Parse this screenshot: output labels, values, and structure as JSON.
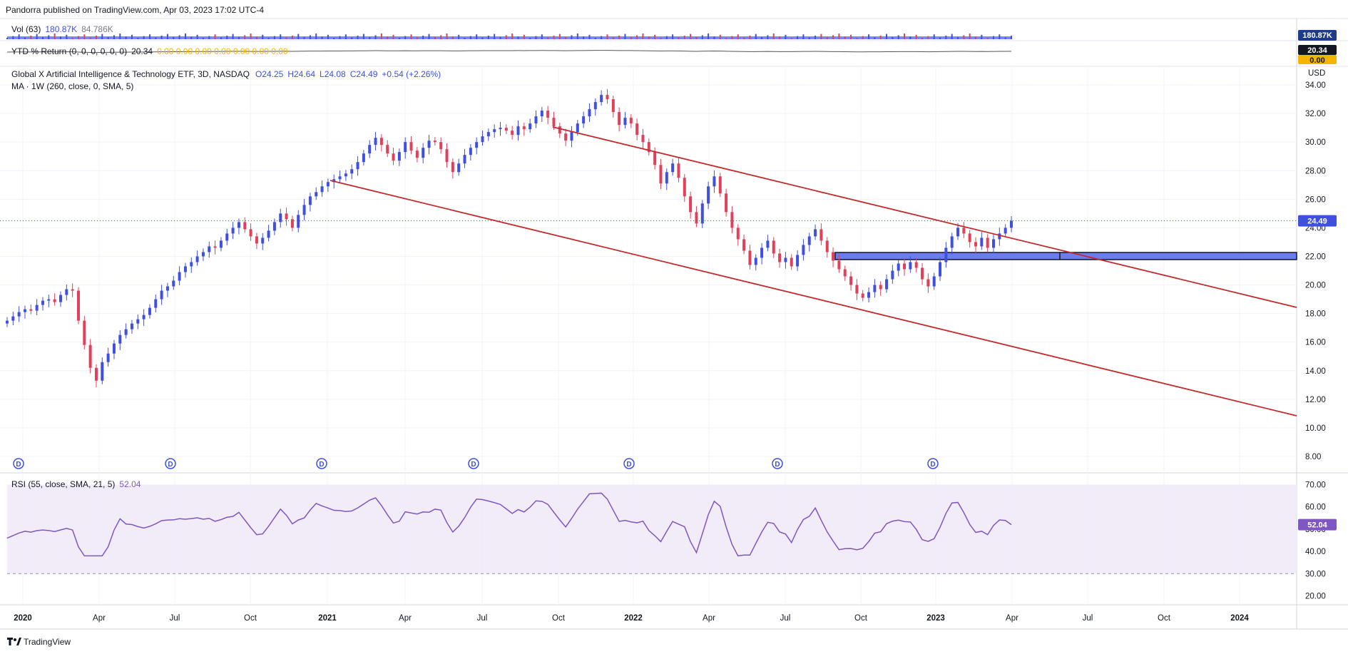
{
  "header": {
    "published": "Pandorra published on TradingView.com, Apr 03, 2023 17:02 UTC-4"
  },
  "volume": {
    "label": "Vol (63)",
    "value1": "180.87K",
    "value2": "84.786K",
    "badge": "180.87K",
    "color": "#5b6be0"
  },
  "ytd": {
    "label": "YTD % Return (0, 0, 0, 0, 0, 0)",
    "value": "20.34",
    "zeros": "0.00  0.00  0.00  0.00  0.00  0.00  0.00",
    "badge1": "20.34",
    "badge2": "0.00"
  },
  "legend": {
    "title": "Global X Artificial Intelligence & Technology ETF, 3D, NASDAQ",
    "o": "O24.25",
    "h": "H24.64",
    "l": "L24.08",
    "c": "C24.49",
    "chg": "+0.54 (+2.26%)",
    "ma": "MA · 1W (260, close, 0, SMA, 5)"
  },
  "rsi": {
    "label": "RSI (55, close, SMA, 21, 5)",
    "value": "52.04",
    "badge": "52.04"
  },
  "price_badge": "24.49",
  "currency": "USD",
  "dividend_marker": "D",
  "brand": "TradingView",
  "colors": {
    "up": "#3f4fe0",
    "down": "#e0405a",
    "trend": "#c42a2a",
    "rsi": "#7e57c2",
    "zone": "#6a7cf0"
  },
  "chart_data": {
    "type": "candlestick",
    "interval": "3D",
    "y_ticks": [
      "34.00",
      "32.00",
      "30.00",
      "28.00",
      "26.00",
      "24.00",
      "22.00",
      "20.00",
      "18.00",
      "16.00",
      "14.00",
      "12.00",
      "10.00",
      "8.00"
    ],
    "ylim": [
      7,
      35.2
    ],
    "x_ticks": [
      "2020",
      "Apr",
      "Jul",
      "Oct",
      "2021",
      "Apr",
      "Jul",
      "Oct",
      "2022",
      "Apr",
      "Jul",
      "Oct",
      "2023",
      "Apr",
      "Jul",
      "Oct",
      "2024"
    ],
    "rsi_ticks": [
      "70.00",
      "60.00",
      "50.00",
      "40.00",
      "30.00",
      "20.00"
    ],
    "rsi_ylim": [
      17,
      74
    ],
    "rsi_band": [
      30,
      70
    ],
    "dividend_count": 7,
    "closes": [
      17.5,
      17.8,
      18.1,
      18.3,
      18.2,
      18.6,
      18.9,
      19.0,
      18.8,
      19.3,
      19.7,
      19.6,
      17.5,
      15.8,
      14.2,
      13.3,
      14.6,
      15.2,
      15.9,
      16.5,
      16.9,
      17.3,
      17.6,
      17.9,
      18.4,
      19.0,
      19.6,
      19.9,
      20.3,
      20.9,
      21.3,
      21.6,
      22.0,
      22.3,
      22.7,
      22.6,
      23.1,
      23.6,
      24.0,
      24.4,
      23.9,
      23.4,
      22.9,
      23.3,
      23.8,
      24.4,
      25.0,
      24.6,
      24.0,
      24.9,
      25.6,
      26.2,
      26.5,
      26.9,
      27.2,
      27.4,
      27.6,
      27.8,
      28.1,
      28.6,
      29.2,
      29.8,
      30.3,
      29.8,
      29.2,
      28.7,
      29.3,
      30.0,
      29.4,
      28.9,
      29.6,
      30.1,
      30.0,
      29.5,
      28.6,
      27.9,
      28.5,
      29.1,
      29.6,
      30.0,
      30.4,
      30.7,
      30.9,
      31.0,
      30.8,
      30.5,
      31.1,
      30.9,
      31.3,
      31.8,
      32.2,
      31.7,
      31.1,
      30.6,
      30.1,
      30.7,
      31.3,
      31.8,
      32.3,
      32.8,
      33.3,
      33.0,
      32.1,
      31.2,
      31.7,
      31.3,
      30.5,
      30.0,
      29.3,
      28.4,
      27.1,
      27.9,
      28.5,
      27.5,
      26.2,
      25.1,
      24.3,
      25.7,
      26.9,
      27.6,
      26.4,
      25.1,
      24.0,
      23.2,
      22.4,
      21.4,
      21.9,
      22.6,
      23.1,
      22.2,
      21.6,
      21.9,
      21.3,
      22.1,
      22.8,
      23.4,
      23.9,
      23.1,
      22.3,
      21.7,
      21.1,
      20.6,
      20.0,
      19.4,
      19.1,
      19.5,
      20.0,
      19.7,
      20.4,
      21.0,
      21.5,
      21.1,
      21.6,
      21.2,
      20.4,
      19.9,
      20.6,
      21.6,
      22.6,
      23.4,
      24.0,
      23.6,
      23.0,
      22.7,
      23.3,
      22.6,
      23.2,
      23.6,
      24.0,
      24.49
    ]
  }
}
